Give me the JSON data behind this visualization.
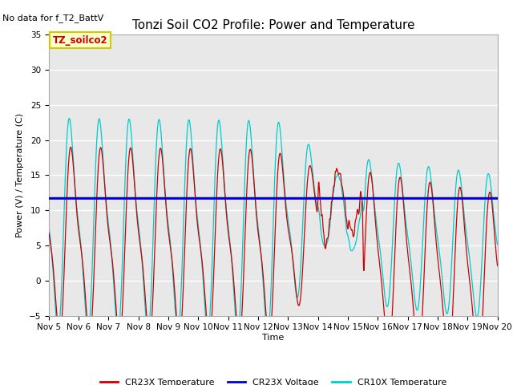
{
  "title": "Tonzi Soil CO2 Profile: Power and Temperature",
  "top_left_text": "No data for f_T2_BattV",
  "ylabel": "Power (V) / Temperature (C)",
  "xlabel": "Time",
  "ylim": [
    -5,
    35
  ],
  "yticks": [
    -5,
    0,
    5,
    10,
    15,
    20,
    25,
    30,
    35
  ],
  "voltage_level": 11.7,
  "legend_entries": [
    "CR23X Temperature",
    "CR23X Voltage",
    "CR10X Temperature"
  ],
  "legend_colors": [
    "#cc0000",
    "#0000cc",
    "#00cccc"
  ],
  "box_label": "TZ_soilco2",
  "box_facecolor": "#ffffcc",
  "box_edgecolor": "#cccc00",
  "plot_bg": "#e8e8e8",
  "title_fontsize": 11,
  "label_fontsize": 8,
  "tick_fontsize": 7.5
}
